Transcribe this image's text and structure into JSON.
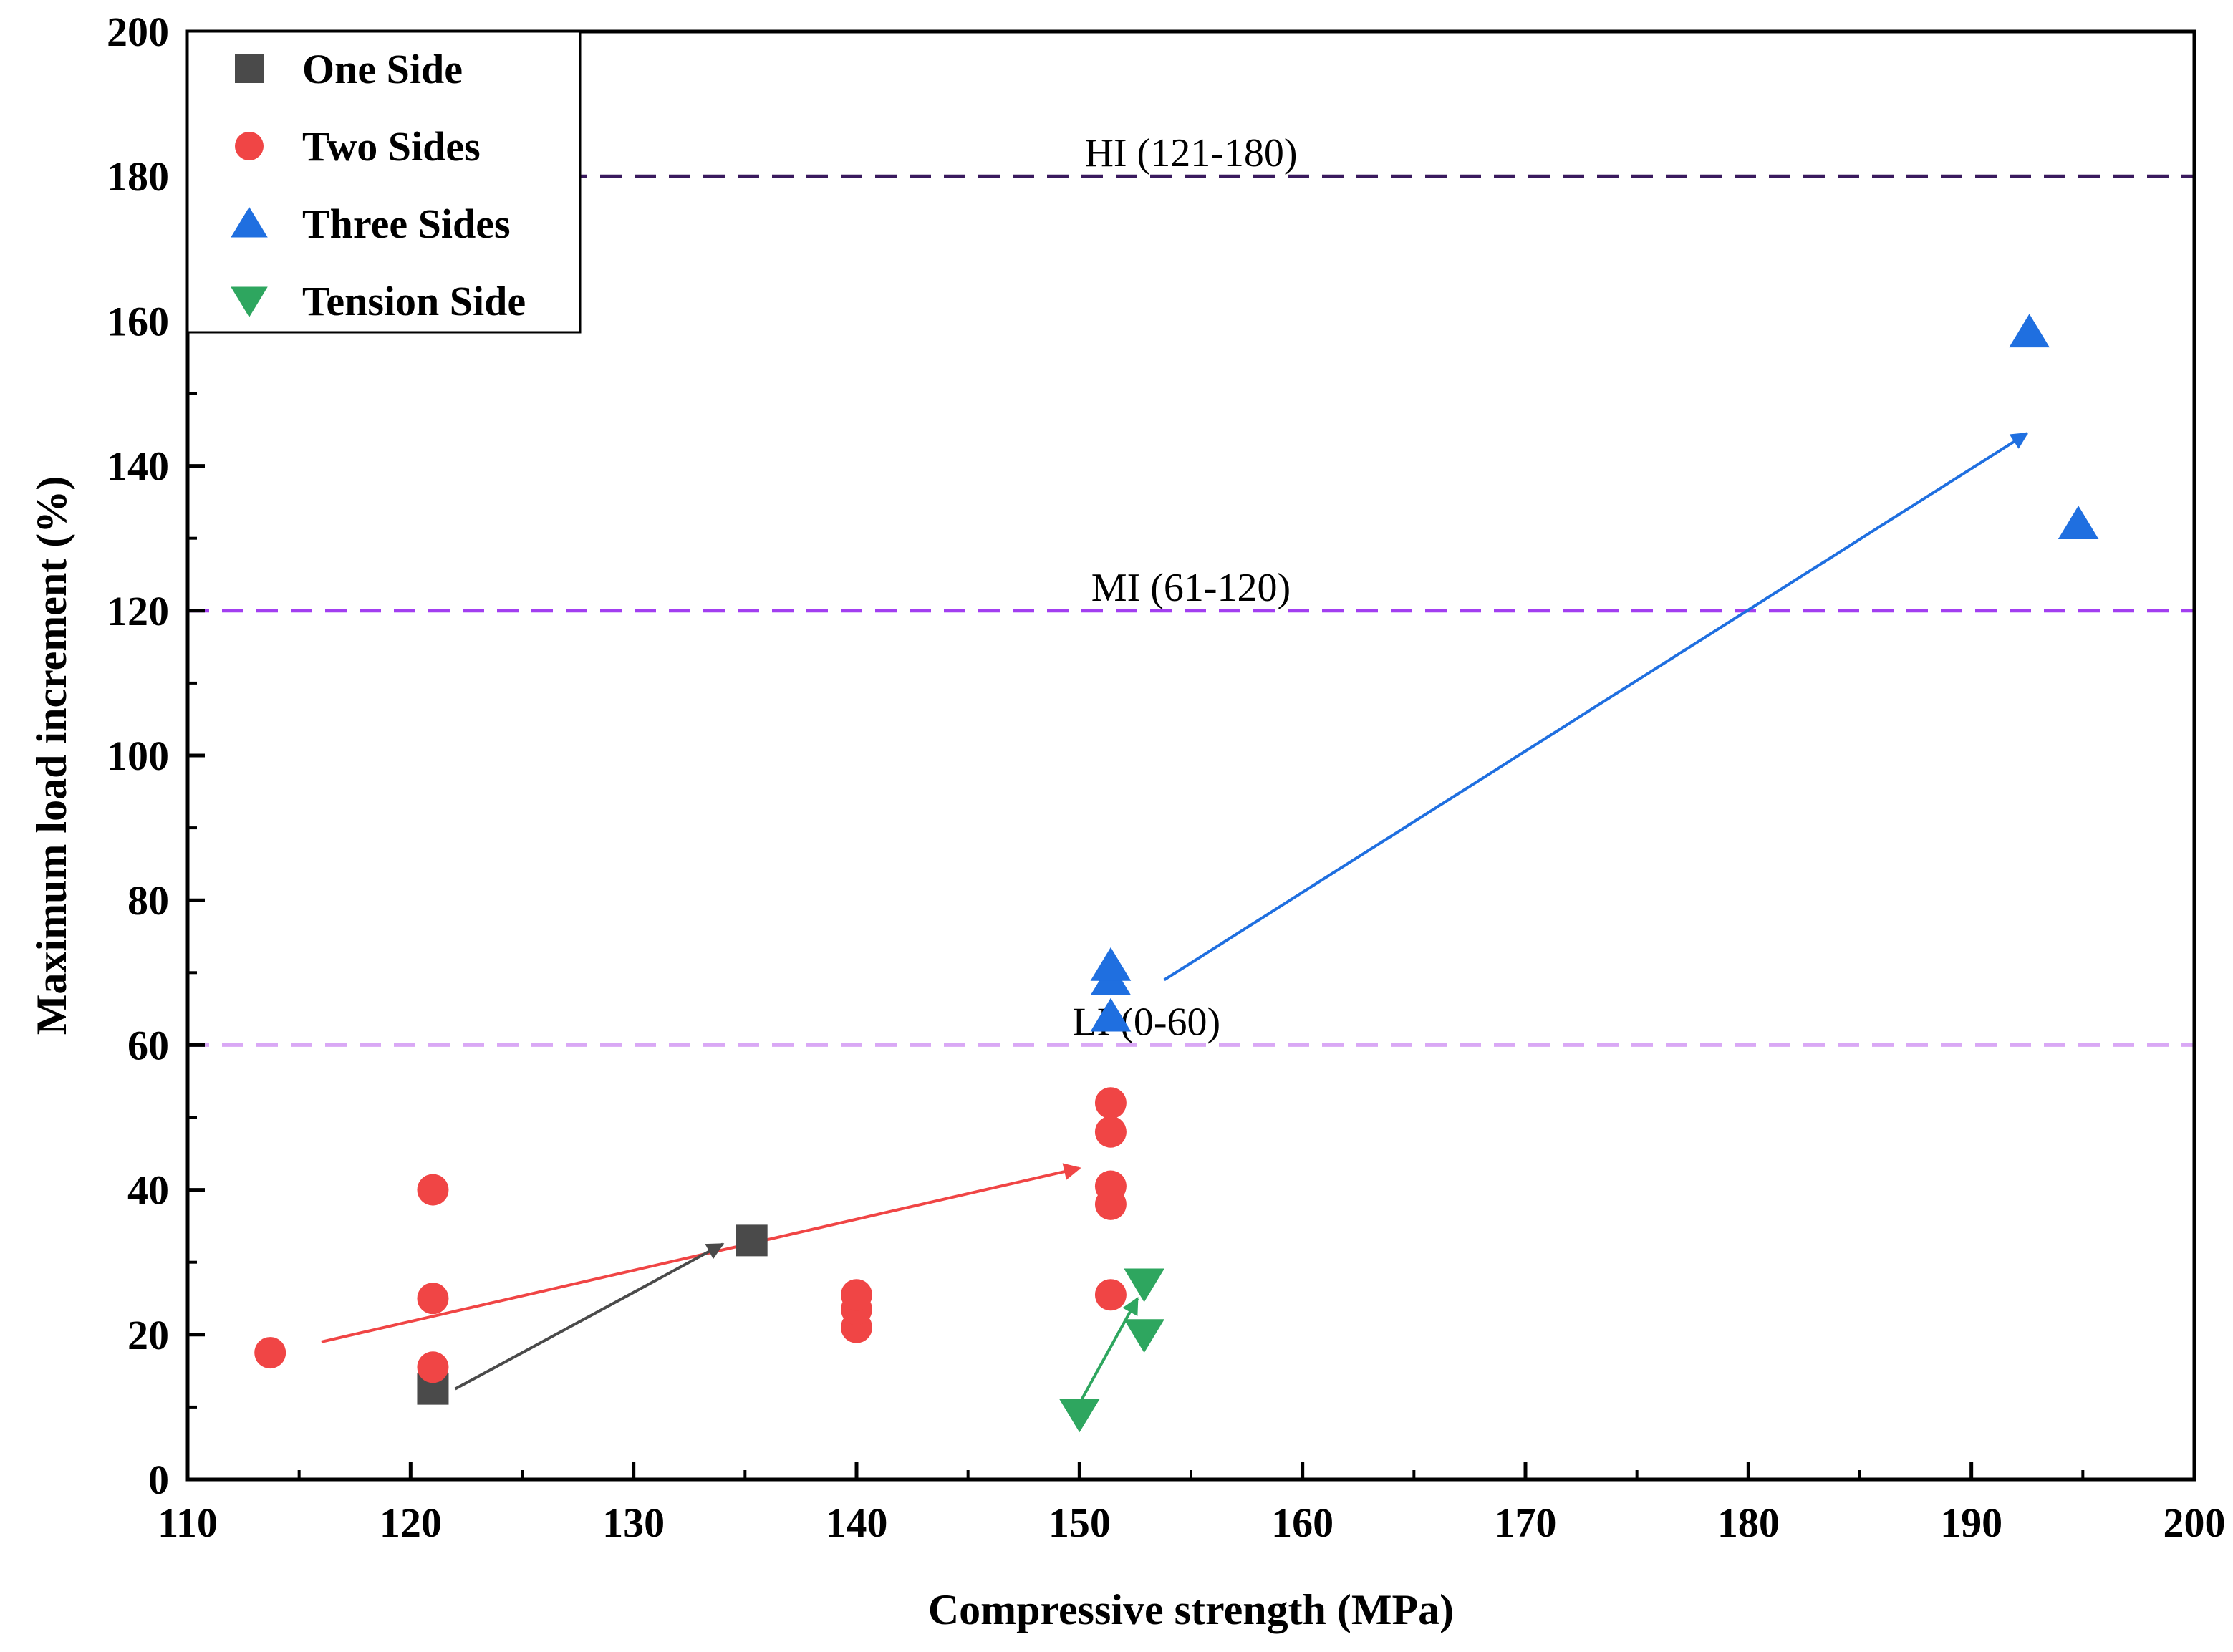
{
  "chart_data": {
    "type": "scatter",
    "xlabel": "Compressive strength (MPa)",
    "ylabel": "Maximum load increment (%)",
    "xlim": [
      110,
      200
    ],
    "ylim": [
      0,
      200
    ],
    "x_ticks": [
      110,
      120,
      130,
      140,
      150,
      160,
      170,
      180,
      190,
      200
    ],
    "y_ticks": [
      0,
      20,
      40,
      60,
      80,
      100,
      120,
      140,
      160,
      180,
      200
    ],
    "grid": false,
    "legend_position": "top-left",
    "series": [
      {
        "name": "One Side",
        "marker": "square",
        "color": "#4a4a4a",
        "points": [
          [
            121,
            12.5
          ],
          [
            135.3,
            33
          ]
        ]
      },
      {
        "name": "Two Sides",
        "marker": "circle",
        "color": "#f04545",
        "points": [
          [
            113.7,
            17.5
          ],
          [
            121,
            15.5
          ],
          [
            121,
            25
          ],
          [
            121,
            40
          ],
          [
            140,
            21
          ],
          [
            140,
            23.5
          ],
          [
            140,
            25.5
          ],
          [
            151.4,
            25.5
          ],
          [
            151.4,
            38
          ],
          [
            151.4,
            40.5
          ],
          [
            151.4,
            48
          ],
          [
            151.4,
            52
          ]
        ]
      },
      {
        "name": "Three Sides",
        "marker": "triangle-up",
        "color": "#1f6fe0",
        "points": [
          [
            151.4,
            64
          ],
          [
            151.4,
            69
          ],
          [
            151.4,
            71
          ],
          [
            192.6,
            158.5
          ],
          [
            194.8,
            132
          ]
        ]
      },
      {
        "name": "Tension Side",
        "marker": "triangle-down",
        "color": "#2ea65f",
        "points": [
          [
            150,
            9
          ],
          [
            152.9,
            20
          ],
          [
            152.9,
            27
          ]
        ]
      }
    ],
    "reference_lines": [
      {
        "y": 180,
        "label": "HI (121-180)",
        "color": "#3a1a5e",
        "label_x": 155
      },
      {
        "y": 120,
        "label": "MI (61-120)",
        "color": "#a23ef0",
        "label_x": 155
      },
      {
        "y": 60,
        "label": "LI (0-60)",
        "color": "#d9a8f5",
        "label_x": 153
      }
    ],
    "arrows": [
      {
        "color": "#f04545",
        "from": [
          116,
          19
        ],
        "to": [
          150,
          43
        ]
      },
      {
        "color": "#4a4a4a",
        "from": [
          122,
          12.5
        ],
        "to": [
          134,
          32.5
        ]
      },
      {
        "color": "#1f6fe0",
        "from": [
          153.8,
          69
        ],
        "to": [
          192.5,
          144.5
        ]
      },
      {
        "color": "#2ea65f",
        "from": [
          150,
          10.5
        ],
        "to": [
          152.6,
          25
        ]
      }
    ]
  }
}
